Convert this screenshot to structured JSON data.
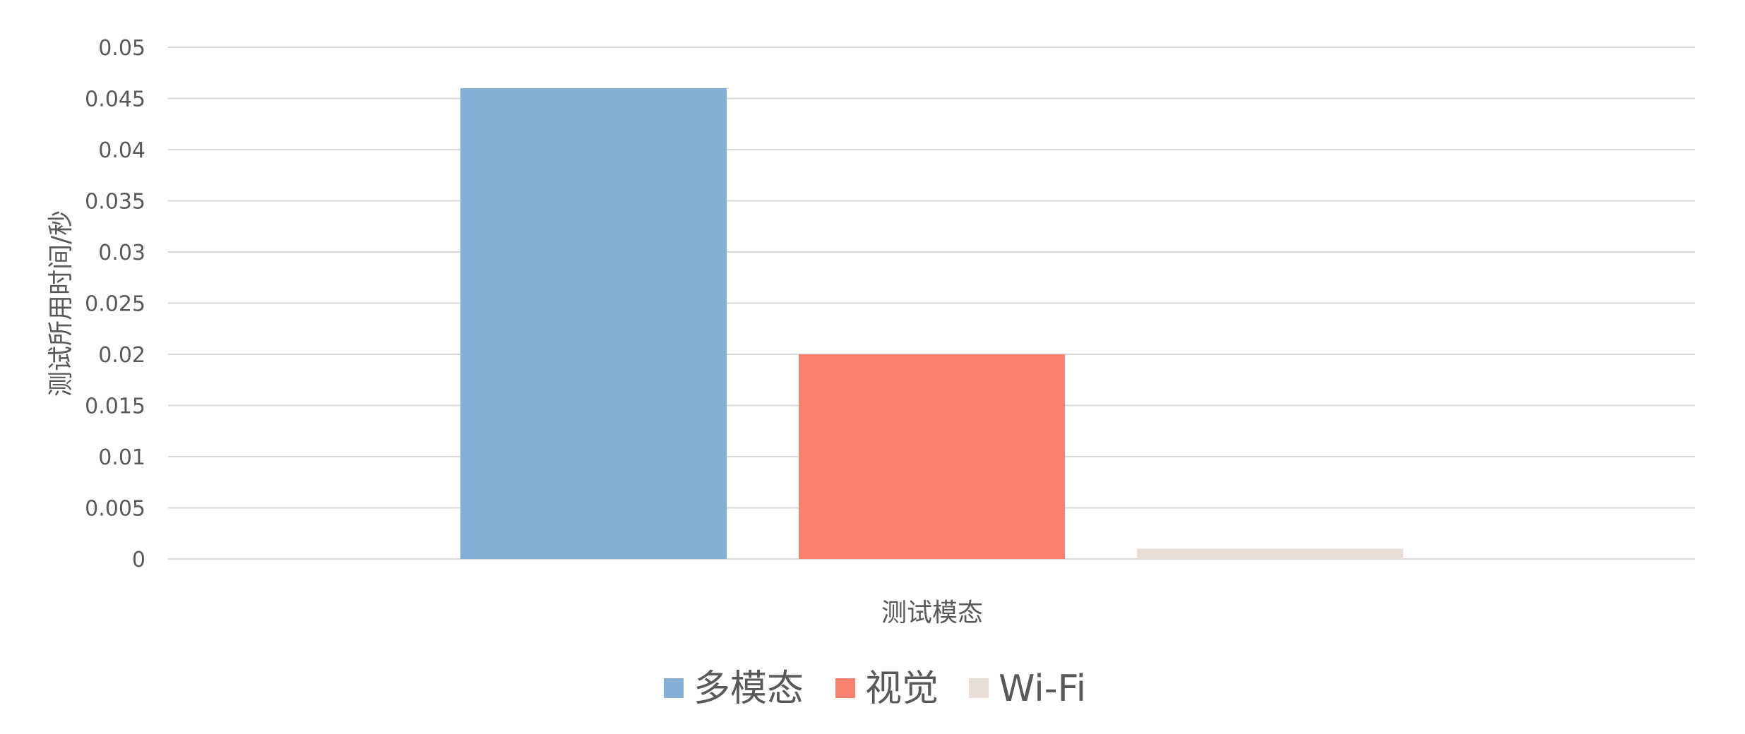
{
  "chart_data": {
    "type": "bar",
    "title": "",
    "xlabel": "测试模态",
    "ylabel": "测试所用时间/秒",
    "ylim": [
      0,
      0.05
    ],
    "y_ticks": [
      "0",
      "0.005",
      "0.01",
      "0.015",
      "0.02",
      "0.025",
      "0.03",
      "0.035",
      "0.04",
      "0.045",
      "0.05"
    ],
    "grid": true,
    "legend_position": "bottom",
    "series": [
      {
        "name": "多模态",
        "values": [
          0.046
        ],
        "color": "#82afd3"
      },
      {
        "name": "视觉",
        "values": [
          0.02
        ],
        "color": "#fa8070"
      },
      {
        "name": "Wi-Fi",
        "values": [
          0.001
        ],
        "color": "#e8ddd6"
      }
    ]
  }
}
